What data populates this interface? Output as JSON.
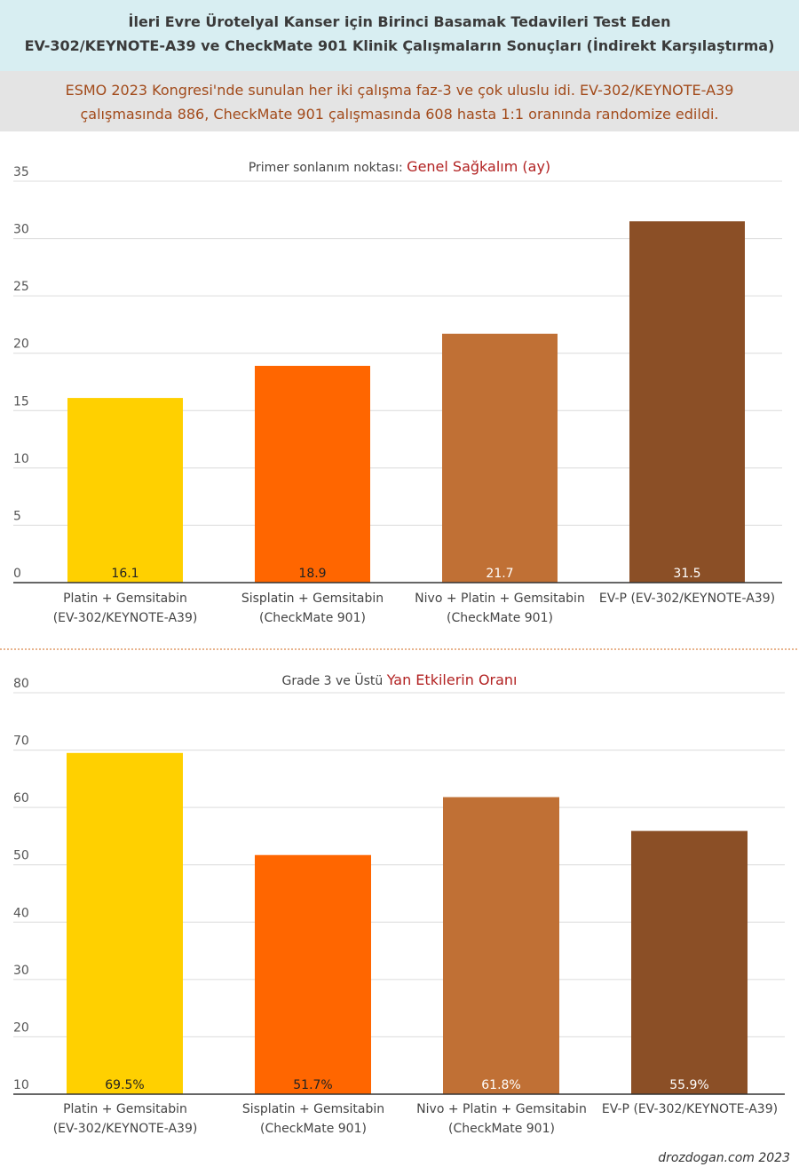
{
  "header": {
    "title_line1": "İleri Evre Ürotelyal Kanser için Birinci Basamak Tedavileri Test Eden",
    "title_line2": "EV-302/KEYNOTE-A39 ve CheckMate 901 Klinik Çalışmaların Sonuçları (İndirekt Karşılaştırma)"
  },
  "subheader": {
    "line1": "ESMO 2023 Kongresi'nde sunulan her iki çalışma faz-3 ve çok uluslu idi. EV-302/KEYNOTE-A39",
    "line2": "çalışmasında 886, CheckMate 901 çalışmasında 608 hasta 1:1 oranında randomize edildi."
  },
  "credit": "drozdogan.com 2023",
  "colors": {
    "bars": [
      "#ffd000",
      "#ff6600",
      "#c07035",
      "#8b4f26"
    ],
    "label_text": [
      "#222222",
      "#222222",
      "#ffffff",
      "#ffffff"
    ],
    "title_highlight": "#b22222"
  },
  "chart_data": [
    {
      "type": "bar",
      "title_prefix": "Primer sonlanım noktası: ",
      "title_highlight": "Genel Sağkalım (ay)",
      "categories": [
        [
          "Platin + Gemsitabin",
          "(EV-302/KEYNOTE-A39)"
        ],
        [
          "Sisplatin + Gemsitabin",
          "(CheckMate 901)"
        ],
        [
          "Nivo + Platin + Gemsitabin",
          "(CheckMate 901)"
        ],
        [
          "EV-P (EV-302/KEYNOTE-A39)"
        ]
      ],
      "values": [
        16.1,
        18.9,
        21.7,
        31.5
      ],
      "value_labels": [
        "16.1",
        "18.9",
        "21.7",
        "31.5"
      ],
      "ylim": [
        0,
        35
      ],
      "yticks": [
        0,
        5,
        10,
        15,
        20,
        25,
        30,
        35
      ],
      "grid": true,
      "xlabel": "",
      "ylabel": ""
    },
    {
      "type": "bar",
      "title_prefix": "Grade 3 ve Üstü ",
      "title_highlight": "Yan Etkilerin Oranı",
      "categories": [
        [
          "Platin + Gemsitabin",
          "(EV-302/KEYNOTE-A39)"
        ],
        [
          "Sisplatin + Gemsitabin",
          "(CheckMate 901)"
        ],
        [
          "Nivo + Platin + Gemsitabin",
          "(CheckMate 901)"
        ],
        [
          "EV-P (EV-302/KEYNOTE-A39)"
        ]
      ],
      "values": [
        69.5,
        51.7,
        61.8,
        55.9
      ],
      "value_labels": [
        "69.5%",
        "51.7%",
        "61.8%",
        "55.9%"
      ],
      "ylim": [
        10,
        80
      ],
      "yticks": [
        10,
        20,
        30,
        40,
        50,
        60,
        70,
        80
      ],
      "grid": true,
      "xlabel": "",
      "ylabel": ""
    }
  ]
}
